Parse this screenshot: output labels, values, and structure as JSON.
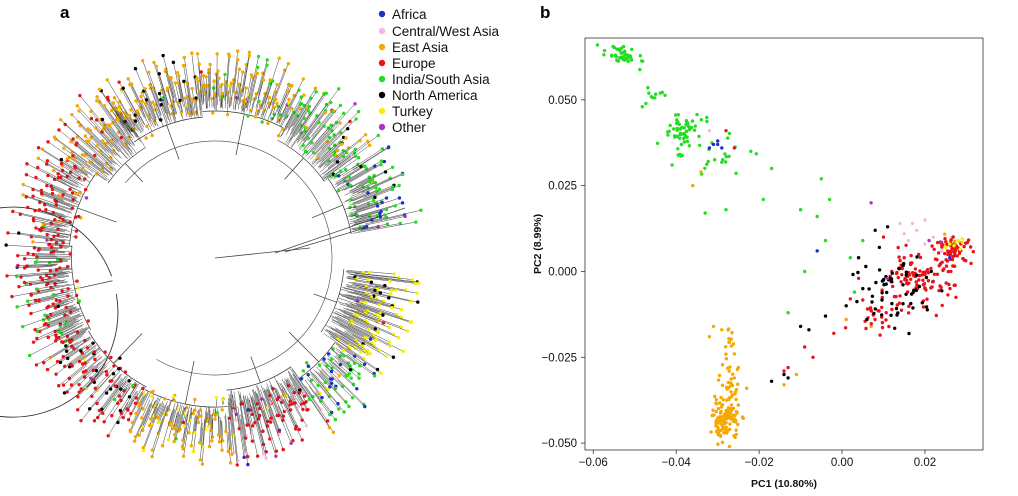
{
  "panels": {
    "a": "a",
    "b": "b"
  },
  "legend": [
    {
      "label": "Africa",
      "color": "#1f2fcc"
    },
    {
      "label": "Central/West Asia",
      "color": "#f7b8e8"
    },
    {
      "label": "East Asia",
      "color": "#f5a800"
    },
    {
      "label": "Europe",
      "color": "#e8141b"
    },
    {
      "label": "India/South Asia",
      "color": "#22dd22"
    },
    {
      "label": "North America",
      "color": "#000000"
    },
    {
      "label": "Turkey",
      "color": "#f7f000"
    },
    {
      "label": "Other",
      "color": "#b030c0"
    }
  ],
  "chart_data": [
    {
      "type": "tree",
      "panel": "a",
      "title": "",
      "description_groups": [
        "East Asia",
        "India/South Asia",
        "Europe",
        "North America",
        "Turkey",
        "Africa",
        "Central/West Asia",
        "Other"
      ]
    },
    {
      "type": "scatter",
      "panel": "b",
      "xlabel": "PC1 (10.80%)",
      "ylabel": "PC2 (8.99%)",
      "xlim": [
        -0.062,
        0.034
      ],
      "ylim": [
        -0.052,
        0.068
      ],
      "xticks": [
        -0.06,
        -0.04,
        -0.02,
        0.0,
        0.02
      ],
      "xtick_labels": [
        "−0.06",
        "−0.04",
        "−0.02",
        "0.00",
        "0.02"
      ],
      "yticks": [
        -0.05,
        -0.025,
        0.0,
        0.025,
        0.05
      ],
      "ytick_labels": [
        "−0.050",
        "−0.025",
        "0.000",
        "0.025",
        "0.050"
      ],
      "series": [
        {
          "name": "India/South Asia",
          "color": "#22dd22",
          "clusters": [
            {
              "cx": -0.053,
              "cy": 0.063,
              "sx": 0.0018,
              "sy": 0.0015,
              "n": 40
            },
            {
              "cx": -0.039,
              "cy": 0.041,
              "sx": 0.0022,
              "sy": 0.0028,
              "n": 55
            },
            {
              "cx": -0.031,
              "cy": 0.033,
              "sx": 0.004,
              "sy": 0.004,
              "n": 22
            },
            {
              "cx": -0.046,
              "cy": 0.052,
              "sx": 0.003,
              "sy": 0.003,
              "n": 12
            }
          ],
          "points": [
            [
              -0.059,
              0.066
            ],
            [
              -0.022,
              0.035
            ],
            [
              -0.019,
              0.021
            ],
            [
              -0.017,
              0.03
            ],
            [
              -0.005,
              0.027
            ],
            [
              -0.003,
              0.021
            ],
            [
              -0.01,
              0.018
            ],
            [
              -0.028,
              0.018
            ],
            [
              -0.033,
              0.017
            ],
            [
              -0.004,
              0.009
            ],
            [
              -0.009,
              0.0
            ],
            [
              0.002,
              0.004
            ],
            [
              0.003,
              -0.006
            ],
            [
              -0.013,
              -0.012
            ],
            [
              0.005,
              0.009
            ],
            [
              -0.006,
              0.016
            ],
            [
              -0.041,
              0.031
            ]
          ]
        },
        {
          "name": "East Asia",
          "color": "#f5a800",
          "clusters": [
            {
              "cx": -0.028,
              "cy": -0.043,
              "sx": 0.0016,
              "sy": 0.003,
              "n": 110
            },
            {
              "cx": -0.027,
              "cy": -0.033,
              "sx": 0.0012,
              "sy": 0.0035,
              "n": 25
            },
            {
              "cx": -0.028,
              "cy": -0.022,
              "sx": 0.0012,
              "sy": 0.0025,
              "n": 12
            },
            {
              "cx": 0.027,
              "cy": 0.008,
              "sx": 0.0015,
              "sy": 0.001,
              "n": 12
            }
          ],
          "points": [
            [
              -0.031,
              -0.016
            ],
            [
              -0.029,
              -0.017
            ],
            [
              -0.032,
              -0.019
            ],
            [
              -0.026,
              -0.024
            ],
            [
              -0.025,
              -0.028
            ],
            [
              -0.026,
              -0.031
            ],
            [
              -0.023,
              -0.034
            ],
            [
              -0.036,
              0.025
            ],
            [
              -0.034,
              0.029
            ],
            [
              0.007,
              -0.016
            ],
            [
              -0.011,
              -0.03
            ],
            [
              -0.014,
              -0.033
            ],
            [
              0.001,
              -0.014
            ]
          ]
        },
        {
          "name": "Europe",
          "color": "#e8141b",
          "clusters": [
            {
              "cx": 0.018,
              "cy": -0.003,
              "sx": 0.0045,
              "sy": 0.0038,
              "n": 100
            },
            {
              "cx": 0.027,
              "cy": 0.006,
              "sx": 0.0022,
              "sy": 0.0018,
              "n": 60
            },
            {
              "cx": 0.008,
              "cy": -0.012,
              "sx": 0.003,
              "sy": 0.0025,
              "n": 25
            }
          ],
          "points": [
            [
              -0.028,
              0.041
            ],
            [
              -0.026,
              0.036
            ],
            [
              -0.009,
              -0.022
            ],
            [
              -0.007,
              -0.025
            ],
            [
              -0.002,
              -0.018
            ],
            [
              0.002,
              -0.008
            ],
            [
              0.012,
              0.0
            ],
            [
              0.015,
              0.004
            ],
            [
              -0.014,
              -0.029
            ],
            [
              -0.013,
              -0.028
            ],
            [
              0.004,
              -0.002
            ],
            [
              0.01,
              0.01
            ]
          ]
        },
        {
          "name": "North America",
          "color": "#000000",
          "clusters": [
            {
              "cx": 0.014,
              "cy": -0.006,
              "sx": 0.006,
              "sy": 0.006,
              "n": 55
            }
          ],
          "points": [
            [
              0.008,
              0.012
            ],
            [
              0.009,
              0.007
            ],
            [
              0.011,
              0.013
            ],
            [
              0.004,
              0.004
            ],
            [
              0.005,
              -0.005
            ],
            [
              0.001,
              -0.01
            ],
            [
              -0.004,
              -0.013
            ],
            [
              -0.008,
              -0.017
            ],
            [
              -0.01,
              -0.016
            ],
            [
              -0.014,
              -0.03
            ],
            [
              -0.013,
              -0.031
            ],
            [
              -0.017,
              -0.032
            ],
            [
              0.006,
              -0.014
            ],
            [
              0.012,
              -0.003
            ]
          ]
        },
        {
          "name": "Central/West Asia",
          "color": "#f7b8e8",
          "clusters": [],
          "points": [
            [
              0.014,
              0.014
            ],
            [
              0.017,
              0.014
            ],
            [
              0.018,
              0.012
            ],
            [
              0.015,
              0.011
            ],
            [
              0.02,
              0.015
            ],
            [
              0.022,
              0.01
            ],
            [
              0.02,
              0.008
            ],
            [
              0.016,
              0.009
            ],
            [
              -0.032,
              0.041
            ],
            [
              0.024,
              0.006
            ]
          ]
        },
        {
          "name": "Turkey",
          "color": "#f7f000",
          "clusters": [],
          "points": [
            [
              0.028,
              0.009
            ],
            [
              0.027,
              0.0075
            ],
            [
              0.029,
              0.0095
            ],
            [
              0.026,
              0.008
            ],
            [
              0.0285,
              0.0065
            ],
            [
              0.025,
              0.007
            ],
            [
              0.029,
              0.0085
            ]
          ]
        },
        {
          "name": "Africa",
          "color": "#1f2fcc",
          "clusters": [],
          "points": [
            [
              -0.031,
              0.037
            ],
            [
              -0.03,
              0.038
            ],
            [
              -0.029,
              0.036
            ],
            [
              -0.032,
              0.036
            ],
            [
              -0.03,
              0.037
            ],
            [
              -0.006,
              0.006
            ],
            [
              0.026,
              0.004
            ]
          ]
        },
        {
          "name": "Other",
          "color": "#b030c0",
          "clusters": [],
          "points": [
            [
              0.007,
              0.02
            ],
            [
              0.021,
              0.009
            ],
            [
              0.024,
              0.0085
            ],
            [
              0.011,
              -0.002
            ]
          ]
        }
      ]
    }
  ]
}
